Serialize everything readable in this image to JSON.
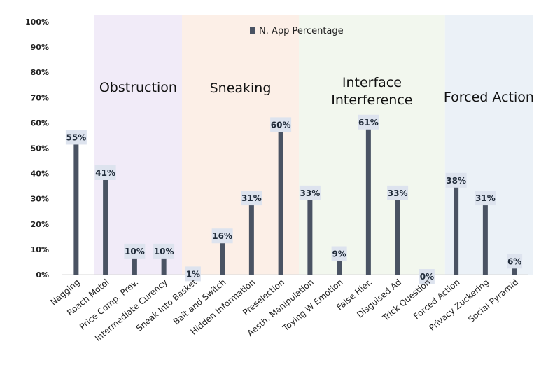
{
  "chart_data": {
    "type": "bar",
    "title": "",
    "xlabel": "",
    "ylabel": "",
    "ylim": [
      0,
      100
    ],
    "y_ticks": [
      "0%",
      "10%",
      "20%",
      "30%",
      "40%",
      "50%",
      "60%",
      "70%",
      "80%",
      "90%",
      "100%"
    ],
    "categories": [
      "Nagging",
      "Roach Motel",
      "Price Comp. Prev.",
      "Intermediate Curency",
      "Sneak Into Basket",
      "Bait and Switch",
      "Hidden Information",
      "Preselection",
      "Aesth. Manipulation",
      "Toying W Emotion",
      "False Hier.",
      "Disguised Ad",
      "Trick Question",
      "Forced Action",
      "Privacy Zuckering",
      "Social Pyramid"
    ],
    "series": [
      {
        "name": "N. App Percentage",
        "values": [
          55,
          41,
          10,
          10,
          1,
          16,
          31,
          60,
          33,
          9,
          61,
          33,
          0,
          38,
          31,
          6
        ],
        "labels": [
          "55%",
          "41%",
          "10%",
          "10%",
          "1%",
          "16%",
          "31%",
          "60%",
          "33%",
          "9%",
          "61%",
          "33%",
          "0%",
          "38%",
          "31%",
          "6%"
        ],
        "color": "#4a5363"
      }
    ],
    "groups": [
      {
        "label_lines": [
          "Obstruction"
        ],
        "categories": [
          "Roach Motel",
          "Price Comp. Prev.",
          "Intermediate Curency"
        ],
        "color": "#f1ebf8"
      },
      {
        "label_lines": [
          "Sneaking"
        ],
        "categories": [
          "Sneak Into Basket",
          "Bait and Switch",
          "Hidden Information",
          "Preselection"
        ],
        "color": "#fcefe7"
      },
      {
        "label_lines": [
          "Interface",
          "Interference"
        ],
        "categories": [
          "Aesth. Manipulation",
          "Toying W Emotion",
          "False Hier.",
          "Disguised Ad",
          "Trick Question"
        ],
        "color": "#f2f7ee"
      },
      {
        "label_lines": [
          "Forced Action"
        ],
        "categories": [
          "Forced Action",
          "Privacy Zuckering",
          "Social Pyramid"
        ],
        "color": "#ebf1f7"
      }
    ],
    "legend_position": "top-center",
    "grid": false,
    "data_label_bg": "#dde3ee"
  }
}
